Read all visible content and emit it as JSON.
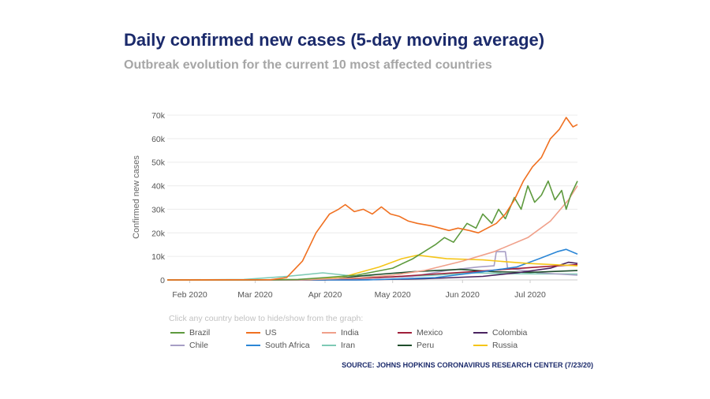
{
  "header": {
    "title": "Daily confirmed new cases (5-day moving average)",
    "subtitle": "Outbreak evolution for the current 10 most affected countries"
  },
  "legend_hint": "Click any country below to hide/show from the graph:",
  "source": "SOURCE: JOHNS HOPKINS CORONAVIRUS RESEARCH CENTER (7/23/20)",
  "chart_data": {
    "type": "line",
    "title": "Daily confirmed new cases (5-day moving average)",
    "subtitle": "Outbreak evolution for the current 10 most affected countries",
    "ylabel": "Confirmed new cases",
    "xlabel": "",
    "x_range": [
      "2020-01-22",
      "2020-07-22"
    ],
    "ylim": [
      0,
      70000
    ],
    "y_ticks": [
      0,
      10000,
      20000,
      30000,
      40000,
      50000,
      60000,
      70000
    ],
    "y_tick_labels": [
      "0",
      "10k",
      "20k",
      "30k",
      "40k",
      "50k",
      "60k",
      "70k"
    ],
    "x_ticks": [
      "2020-02-01",
      "2020-03-01",
      "2020-04-01",
      "2020-05-01",
      "2020-06-01",
      "2020-07-01"
    ],
    "x_tick_labels": [
      "Feb 2020",
      "Mar 2020",
      "Apr 2020",
      "May 2020",
      "Jun 2020",
      "Jul 2020"
    ],
    "grid": true,
    "legend_position": "bottom",
    "series": [
      {
        "name": "Brazil",
        "color": "#5e9a3e",
        "points": [
          [
            "2020-01-22",
            0
          ],
          [
            "2020-03-01",
            0
          ],
          [
            "2020-03-20",
            200
          ],
          [
            "2020-04-01",
            1000
          ],
          [
            "2020-04-15",
            2000
          ],
          [
            "2020-05-01",
            5000
          ],
          [
            "2020-05-10",
            9000
          ],
          [
            "2020-05-20",
            15000
          ],
          [
            "2020-05-24",
            18000
          ],
          [
            "2020-05-28",
            16000
          ],
          [
            "2020-06-03",
            24000
          ],
          [
            "2020-06-07",
            22000
          ],
          [
            "2020-06-10",
            28000
          ],
          [
            "2020-06-14",
            24000
          ],
          [
            "2020-06-17",
            30000
          ],
          [
            "2020-06-20",
            26000
          ],
          [
            "2020-06-24",
            35000
          ],
          [
            "2020-06-27",
            30000
          ],
          [
            "2020-06-30",
            40000
          ],
          [
            "2020-07-03",
            33000
          ],
          [
            "2020-07-06",
            36000
          ],
          [
            "2020-07-09",
            42000
          ],
          [
            "2020-07-12",
            34000
          ],
          [
            "2020-07-15",
            38000
          ],
          [
            "2020-07-17",
            30000
          ],
          [
            "2020-07-19",
            36000
          ],
          [
            "2020-07-22",
            42000
          ]
        ]
      },
      {
        "name": "US",
        "color": "#f07020",
        "points": [
          [
            "2020-01-22",
            0
          ],
          [
            "2020-03-08",
            100
          ],
          [
            "2020-03-15",
            1000
          ],
          [
            "2020-03-22",
            8000
          ],
          [
            "2020-03-28",
            20000
          ],
          [
            "2020-04-03",
            28000
          ],
          [
            "2020-04-07",
            30000
          ],
          [
            "2020-04-10",
            32000
          ],
          [
            "2020-04-14",
            29000
          ],
          [
            "2020-04-18",
            30000
          ],
          [
            "2020-04-22",
            28000
          ],
          [
            "2020-04-26",
            31000
          ],
          [
            "2020-04-30",
            28000
          ],
          [
            "2020-05-04",
            27000
          ],
          [
            "2020-05-08",
            25000
          ],
          [
            "2020-05-12",
            24000
          ],
          [
            "2020-05-18",
            23000
          ],
          [
            "2020-05-22",
            22000
          ],
          [
            "2020-05-26",
            21000
          ],
          [
            "2020-05-30",
            22000
          ],
          [
            "2020-06-04",
            21000
          ],
          [
            "2020-06-08",
            20000
          ],
          [
            "2020-06-12",
            22000
          ],
          [
            "2020-06-16",
            24000
          ],
          [
            "2020-06-20",
            28000
          ],
          [
            "2020-06-24",
            34000
          ],
          [
            "2020-06-28",
            42000
          ],
          [
            "2020-07-02",
            48000
          ],
          [
            "2020-07-06",
            52000
          ],
          [
            "2020-07-10",
            60000
          ],
          [
            "2020-07-14",
            64000
          ],
          [
            "2020-07-17",
            69000
          ],
          [
            "2020-07-20",
            65000
          ],
          [
            "2020-07-22",
            66000
          ]
        ]
      },
      {
        "name": "India",
        "color": "#f0a08a",
        "points": [
          [
            "2020-01-22",
            0
          ],
          [
            "2020-03-20",
            0
          ],
          [
            "2020-04-15",
            800
          ],
          [
            "2020-05-01",
            2000
          ],
          [
            "2020-05-15",
            4000
          ],
          [
            "2020-06-01",
            8000
          ],
          [
            "2020-06-15",
            12000
          ],
          [
            "2020-06-30",
            18000
          ],
          [
            "2020-07-10",
            25000
          ],
          [
            "2020-07-18",
            34000
          ],
          [
            "2020-07-22",
            40000
          ]
        ]
      },
      {
        "name": "Mexico",
        "color": "#a01f3a",
        "points": [
          [
            "2020-01-22",
            0
          ],
          [
            "2020-04-01",
            0
          ],
          [
            "2020-05-01",
            1300
          ],
          [
            "2020-05-20",
            2500
          ],
          [
            "2020-06-05",
            3500
          ],
          [
            "2020-06-20",
            4500
          ],
          [
            "2020-07-05",
            5500
          ],
          [
            "2020-07-22",
            6500
          ]
        ]
      },
      {
        "name": "Colombia",
        "color": "#4a2360",
        "points": [
          [
            "2020-01-22",
            0
          ],
          [
            "2020-04-15",
            0
          ],
          [
            "2020-05-15",
            500
          ],
          [
            "2020-06-10",
            1500
          ],
          [
            "2020-06-25",
            3000
          ],
          [
            "2020-07-10",
            5000
          ],
          [
            "2020-07-18",
            7500
          ],
          [
            "2020-07-22",
            7000
          ]
        ]
      },
      {
        "name": "Chile",
        "color": "#a79ec5",
        "points": [
          [
            "2020-01-22",
            0
          ],
          [
            "2020-03-25",
            0
          ],
          [
            "2020-05-10",
            1500
          ],
          [
            "2020-05-25",
            4000
          ],
          [
            "2020-06-08",
            5500
          ],
          [
            "2020-06-15",
            6000
          ],
          [
            "2020-06-16",
            12000
          ],
          [
            "2020-06-20",
            12000
          ],
          [
            "2020-06-21",
            5000
          ],
          [
            "2020-07-05",
            3000
          ],
          [
            "2020-07-22",
            2000
          ]
        ]
      },
      {
        "name": "South Africa",
        "color": "#2b86d6",
        "points": [
          [
            "2020-01-22",
            0
          ],
          [
            "2020-04-20",
            0
          ],
          [
            "2020-05-20",
            1000
          ],
          [
            "2020-06-10",
            3500
          ],
          [
            "2020-06-25",
            5500
          ],
          [
            "2020-07-05",
            9000
          ],
          [
            "2020-07-13",
            12000
          ],
          [
            "2020-07-17",
            13000
          ],
          [
            "2020-07-22",
            11000
          ]
        ]
      },
      {
        "name": "Iran",
        "color": "#7ecab5",
        "points": [
          [
            "2020-01-22",
            0
          ],
          [
            "2020-02-25",
            200
          ],
          [
            "2020-03-15",
            1500
          ],
          [
            "2020-03-31",
            3000
          ],
          [
            "2020-04-10",
            2000
          ],
          [
            "2020-05-01",
            1200
          ],
          [
            "2020-05-20",
            2000
          ],
          [
            "2020-06-05",
            3000
          ],
          [
            "2020-06-25",
            2600
          ],
          [
            "2020-07-22",
            2500
          ]
        ]
      },
      {
        "name": "Peru",
        "color": "#1e4d2b",
        "points": [
          [
            "2020-01-22",
            0
          ],
          [
            "2020-04-01",
            0
          ],
          [
            "2020-04-20",
            2000
          ],
          [
            "2020-05-10",
            3500
          ],
          [
            "2020-05-31",
            4500
          ],
          [
            "2020-06-15",
            3500
          ],
          [
            "2020-07-01",
            3200
          ],
          [
            "2020-07-22",
            4000
          ]
        ]
      },
      {
        "name": "Russia",
        "color": "#f5c518",
        "points": [
          [
            "2020-01-22",
            0
          ],
          [
            "2020-03-25",
            100
          ],
          [
            "2020-04-10",
            1500
          ],
          [
            "2020-04-25",
            5500
          ],
          [
            "2020-05-05",
            9000
          ],
          [
            "2020-05-12",
            10500
          ],
          [
            "2020-05-25",
            9000
          ],
          [
            "2020-06-10",
            8500
          ],
          [
            "2020-06-30",
            7000
          ],
          [
            "2020-07-22",
            6000
          ]
        ]
      }
    ]
  }
}
